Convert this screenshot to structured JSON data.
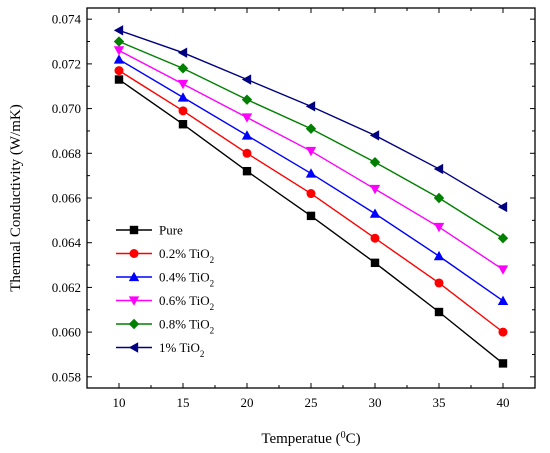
{
  "chart_data": {
    "type": "line",
    "xlabel": "Temperatue (",
    "xlabel_sup": "0",
    "xlabel_unit": "C)",
    "ylabel": "Thermal Conductivity (W/mK)",
    "xlim": [
      7.5,
      42.5
    ],
    "ylim": [
      0.0575,
      0.0745
    ],
    "x_ticks": [
      10,
      15,
      20,
      25,
      30,
      35,
      40
    ],
    "y_ticks": [
      0.058,
      0.06,
      0.062,
      0.064,
      0.066,
      0.068,
      0.07,
      0.072,
      0.074
    ],
    "y_tick_labels": [
      "0.058",
      "0.060",
      "0.062",
      "0.064",
      "0.066",
      "0.068",
      "0.070",
      "0.072",
      "0.074"
    ],
    "grid": false,
    "legend_position": "center-left",
    "x": [
      10,
      15,
      20,
      25,
      30,
      35,
      40
    ],
    "series": [
      {
        "name": "Pure",
        "name_prefix": "Pure",
        "name_sub": "",
        "color": "#000000",
        "marker": "square",
        "values": [
          0.0713,
          0.0693,
          0.0672,
          0.0652,
          0.0631,
          0.0609,
          0.0586
        ]
      },
      {
        "name": "0.2% TiO2",
        "name_prefix": "0.2% TiO",
        "name_sub": "2",
        "color": "#ff0000",
        "marker": "circle",
        "values": [
          0.0717,
          0.0699,
          0.068,
          0.0662,
          0.0642,
          0.0622,
          0.06
        ]
      },
      {
        "name": "0.4% TiO2",
        "name_prefix": "0.4% TiO",
        "name_sub": "2",
        "color": "#0000ff",
        "marker": "triangle-up",
        "values": [
          0.0722,
          0.0705,
          0.0688,
          0.0671,
          0.0653,
          0.0634,
          0.0614
        ]
      },
      {
        "name": "0.6% TiO2",
        "name_prefix": "0.6% TiO",
        "name_sub": "2",
        "color": "#ff00ff",
        "marker": "triangle-down",
        "values": [
          0.0726,
          0.0711,
          0.0696,
          0.0681,
          0.0664,
          0.0647,
          0.0628
        ]
      },
      {
        "name": "0.8% TiO2",
        "name_prefix": "0.8% TiO",
        "name_sub": "2",
        "color": "#008000",
        "marker": "diamond",
        "values": [
          0.073,
          0.0718,
          0.0704,
          0.0691,
          0.0676,
          0.066,
          0.0642
        ]
      },
      {
        "name": "1% TiO2",
        "name_prefix": "1% TiO",
        "name_sub": "2",
        "color": "#000080",
        "marker": "triangle-left",
        "values": [
          0.0735,
          0.0725,
          0.0713,
          0.0701,
          0.0688,
          0.0673,
          0.0656
        ]
      }
    ]
  }
}
